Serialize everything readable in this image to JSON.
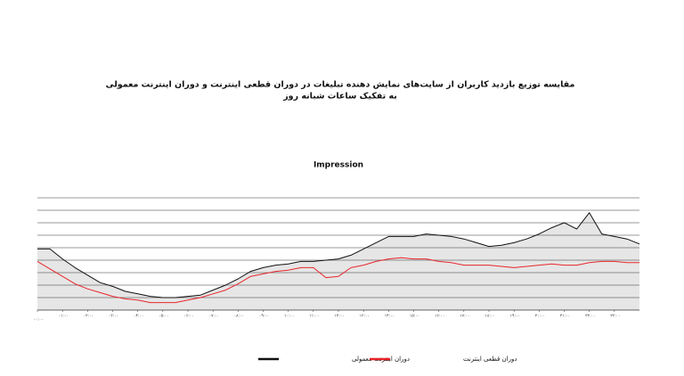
{
  "title": "مقایسه توزیع بازدید کاربران از سایت‌های نمایش دهنده تبلیغات در دوران قطعی اینترنت و دوران اینترنت معمولی",
  "subtitle": "به تفکیک ساعات شبانه روز",
  "chart_data": {
    "type": "line",
    "title": "Impression",
    "xlim": [
      0,
      24
    ],
    "ylim": [
      0,
      9
    ],
    "yticks": [
      0,
      1,
      2,
      3,
      4,
      5,
      6,
      7,
      8,
      9
    ],
    "grid": true,
    "xticks": [
      {
        "value": 0,
        "label": "۰۰:۰۰"
      },
      {
        "value": 1,
        "label": "۰۱:۰۰"
      },
      {
        "value": 2,
        "label": "۰۲:۰۰"
      },
      {
        "value": 3,
        "label": "۰۳:۰۰"
      },
      {
        "value": 4,
        "label": "۰۴:۰۰"
      },
      {
        "value": 5,
        "label": "۰۵:۰۰"
      },
      {
        "value": 6,
        "label": "۰۶:۰۰"
      },
      {
        "value": 7,
        "label": "۰۷:۰۰"
      },
      {
        "value": 8,
        "label": "۰۸:۰۰"
      },
      {
        "value": 9,
        "label": "۰۹:۰۰"
      },
      {
        "value": 10,
        "label": "۱۰:۰۰"
      },
      {
        "value": 11,
        "label": "۱۱:۰۰"
      },
      {
        "value": 12,
        "label": "۱۲:۰۰"
      },
      {
        "value": 13,
        "label": "۱۳:۰۰"
      },
      {
        "value": 14,
        "label": "۱۴:۰۰"
      },
      {
        "value": 15,
        "label": "۱۵:۰۰"
      },
      {
        "value": 16,
        "label": "۱۶:۰۰"
      },
      {
        "value": 17,
        "label": "۱۷:۰۰"
      },
      {
        "value": 18,
        "label": "۱۸:۰۰"
      },
      {
        "value": 19,
        "label": "۱۹:۰۰"
      },
      {
        "value": 20,
        "label": "۲۰:۰۰"
      },
      {
        "value": 21,
        "label": "۲۱:۰۰"
      },
      {
        "value": 22,
        "label": "۲۲:۰۰"
      },
      {
        "value": 23,
        "label": "۲۳:۰۰"
      }
    ],
    "x": [
      0,
      0.5,
      1,
      1.5,
      2,
      2.5,
      3,
      3.5,
      4,
      4.5,
      5,
      5.5,
      6,
      6.5,
      7,
      7.5,
      8,
      8.5,
      9,
      9.5,
      10,
      10.5,
      11,
      11.5,
      12,
      12.5,
      13,
      13.5,
      14,
      14.5,
      15,
      15.5,
      16,
      16.5,
      17,
      17.5,
      18,
      18.5,
      19,
      19.5,
      20,
      20.5,
      21,
      21.5,
      22,
      22.5,
      23,
      23.5,
      24
    ],
    "series": [
      {
        "name": "دوران اینترنت معمولی",
        "color": "#111111",
        "fill": "#e6e6e6",
        "values": [
          4.9,
          4.9,
          4.1,
          3.4,
          2.8,
          2.2,
          1.9,
          1.5,
          1.3,
          1.1,
          1.0,
          1.0,
          1.1,
          1.2,
          1.6,
          2.0,
          2.5,
          3.1,
          3.4,
          3.6,
          3.7,
          3.9,
          3.9,
          4.0,
          4.1,
          4.4,
          4.9,
          5.4,
          5.9,
          5.9,
          5.9,
          6.1,
          6.0,
          5.9,
          5.7,
          5.4,
          5.1,
          5.2,
          5.4,
          5.7,
          6.1,
          6.6,
          7.0,
          6.5,
          7.8,
          6.1,
          5.9,
          5.7,
          5.3
        ]
      },
      {
        "name": "دوران قطعی اینترنت",
        "color": "#e8262b",
        "values": [
          3.9,
          3.3,
          2.7,
          2.1,
          1.7,
          1.4,
          1.1,
          0.9,
          0.8,
          0.6,
          0.6,
          0.6,
          0.8,
          1.0,
          1.3,
          1.6,
          2.1,
          2.7,
          2.9,
          3.1,
          3.2,
          3.4,
          3.4,
          2.6,
          2.7,
          3.4,
          3.6,
          3.9,
          4.1,
          4.2,
          4.1,
          4.1,
          3.9,
          3.8,
          3.6,
          3.6,
          3.6,
          3.5,
          3.4,
          3.5,
          3.6,
          3.7,
          3.6,
          3.6,
          3.8,
          3.9,
          3.9,
          3.8,
          3.8
        ]
      }
    ]
  }
}
